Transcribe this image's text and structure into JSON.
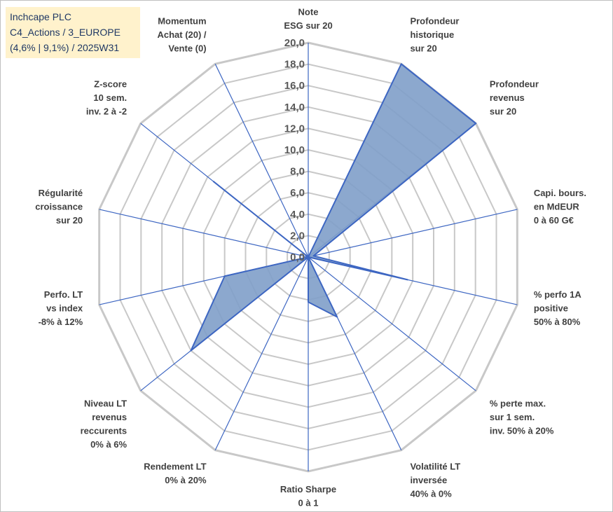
{
  "title_box": {
    "line1": "Inchcape PLC",
    "line2": "C4_Actions / 3_EUROPE",
    "line3": "(4,6% | 9,1%) / 2025W31"
  },
  "colors": {
    "fill": "#7f9fc9",
    "stroke": "#3d66c2",
    "grid": "#c8c8c8",
    "spoke": "#3d66c2",
    "title_bg": "#fff2cc",
    "title_text": "#1f3864"
  },
  "chart_data": {
    "type": "radar",
    "rmin": 0,
    "rmax": 20,
    "tick_step": 2,
    "tick_labels": [
      "0,0",
      "2,0",
      "4,0",
      "6,0",
      "8,0",
      "10,0",
      "12,0",
      "14,0",
      "16,0",
      "18,0",
      "20,0"
    ],
    "axes": [
      {
        "label": [
          "Note",
          "ESG sur 20"
        ],
        "value": 0
      },
      {
        "label": [
          "Profondeur",
          "historique",
          "sur 20"
        ],
        "value": 20
      },
      {
        "label": [
          "Profondeur",
          "revenus",
          "sur 20"
        ],
        "value": 20
      },
      {
        "label": [
          "Capi. bours.",
          "en MdEUR",
          "0 à 60 G€"
        ],
        "value": 0.5
      },
      {
        "label": [
          "% perfo 1A",
          "positive",
          "50% à 80%"
        ],
        "value": 9.5
      },
      {
        "label": [
          "% perte max.",
          "sur 1 sem.",
          "inv. 50% à 20%"
        ],
        "value": 0
      },
      {
        "label": [
          "Volatilité LT",
          "inversée",
          "40% à 0%"
        ],
        "value": 6.2
      },
      {
        "label": [
          "Ratio Sharpe",
          "0 à 1"
        ],
        "value": 4.2
      },
      {
        "label": [
          "Rendement LT",
          "0% à 20%"
        ],
        "value": 0
      },
      {
        "label": [
          "Niveau LT",
          "revenus",
          "reccurents",
          "0% à 6%"
        ],
        "value": 14
      },
      {
        "label": [
          "Perfo. LT",
          "vs index",
          "-8% à 12%"
        ],
        "value": 8
      },
      {
        "label": [
          "Régularité",
          "croissance",
          "sur 20"
        ],
        "value": 0
      },
      {
        "label": [
          "Z-score",
          "10 sem.",
          "inv. 2 à -2"
        ],
        "value": 11.3
      },
      {
        "label": [
          "Momentum",
          "Achat (20) /",
          "Vente (0)"
        ],
        "value": 0
      }
    ]
  }
}
